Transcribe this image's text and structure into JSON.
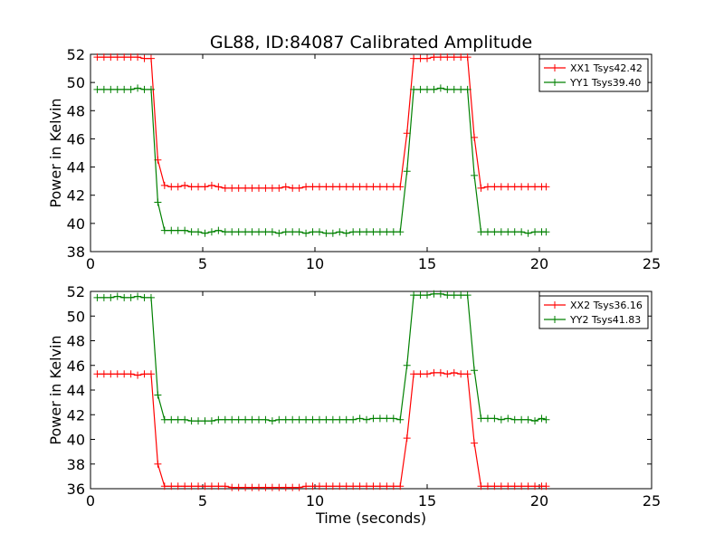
{
  "chart_data": {
    "type": "line",
    "title": "GL88, ID:84087 Calibrated Amplitude",
    "panels": [
      {
        "ylabel": "Power in Kelvin",
        "xlabel": "",
        "xlim": [
          0,
          25
        ],
        "ylim": [
          38,
          52
        ],
        "xticks": [
          "0",
          "5",
          "10",
          "15",
          "20",
          "25"
        ],
        "yticks": [
          "38",
          "40",
          "42",
          "44",
          "46",
          "48",
          "50",
          "52"
        ],
        "legend_position": "top-right",
        "series": [
          {
            "name": "XX1 Tsys42.42",
            "color": "#ff0000",
            "x": [
              0.3,
              0.6,
              0.9,
              1.2,
              1.5,
              1.8,
              2.1,
              2.4,
              2.7,
              3.0,
              3.3,
              3.6,
              3.9,
              4.2,
              4.5,
              4.8,
              5.1,
              5.4,
              5.7,
              6.0,
              6.3,
              6.6,
              6.9,
              7.2,
              7.5,
              7.8,
              8.1,
              8.4,
              8.7,
              9.0,
              9.3,
              9.6,
              9.9,
              10.2,
              10.5,
              10.8,
              11.1,
              11.4,
              11.7,
              12.0,
              12.3,
              12.6,
              12.9,
              13.2,
              13.5,
              13.8,
              14.1,
              14.4,
              14.7,
              15.0,
              15.3,
              15.6,
              15.9,
              16.2,
              16.5,
              16.8,
              17.1,
              17.4,
              17.7,
              18.0,
              18.3,
              18.6,
              18.9,
              19.2,
              19.5,
              19.8,
              20.1,
              20.3
            ],
            "y": [
              51.8,
              51.8,
              51.8,
              51.8,
              51.8,
              51.8,
              51.8,
              51.7,
              51.7,
              44.5,
              42.7,
              42.6,
              42.6,
              42.7,
              42.6,
              42.6,
              42.6,
              42.7,
              42.6,
              42.5,
              42.5,
              42.5,
              42.5,
              42.5,
              42.5,
              42.5,
              42.5,
              42.5,
              42.6,
              42.5,
              42.5,
              42.6,
              42.6,
              42.6,
              42.6,
              42.6,
              42.6,
              42.6,
              42.6,
              42.6,
              42.6,
              42.6,
              42.6,
              42.6,
              42.6,
              42.6,
              46.4,
              51.7,
              51.7,
              51.7,
              51.8,
              51.8,
              51.8,
              51.8,
              51.8,
              51.8,
              46.1,
              42.5,
              42.6,
              42.6,
              42.6,
              42.6,
              42.6,
              42.6,
              42.6,
              42.6,
              42.6,
              42.6
            ]
          },
          {
            "name": "YY1 Tsys39.40",
            "color": "#008000",
            "x": [
              0.3,
              0.6,
              0.9,
              1.2,
              1.5,
              1.8,
              2.1,
              2.4,
              2.7,
              3.0,
              3.3,
              3.6,
              3.9,
              4.2,
              4.5,
              4.8,
              5.1,
              5.4,
              5.7,
              6.0,
              6.3,
              6.6,
              6.9,
              7.2,
              7.5,
              7.8,
              8.1,
              8.4,
              8.7,
              9.0,
              9.3,
              9.6,
              9.9,
              10.2,
              10.5,
              10.8,
              11.1,
              11.4,
              11.7,
              12.0,
              12.3,
              12.6,
              12.9,
              13.2,
              13.5,
              13.8,
              14.1,
              14.4,
              14.7,
              15.0,
              15.3,
              15.6,
              15.9,
              16.2,
              16.5,
              16.8,
              17.1,
              17.4,
              17.7,
              18.0,
              18.3,
              18.6,
              18.9,
              19.2,
              19.5,
              19.8,
              20.1,
              20.3
            ],
            "y": [
              49.5,
              49.5,
              49.5,
              49.5,
              49.5,
              49.5,
              49.6,
              49.5,
              49.5,
              41.5,
              39.5,
              39.5,
              39.5,
              39.5,
              39.4,
              39.4,
              39.3,
              39.4,
              39.5,
              39.4,
              39.4,
              39.4,
              39.4,
              39.4,
              39.4,
              39.4,
              39.4,
              39.3,
              39.4,
              39.4,
              39.4,
              39.3,
              39.4,
              39.4,
              39.3,
              39.3,
              39.4,
              39.3,
              39.4,
              39.4,
              39.4,
              39.4,
              39.4,
              39.4,
              39.4,
              39.4,
              43.7,
              49.5,
              49.5,
              49.5,
              49.5,
              49.6,
              49.5,
              49.5,
              49.5,
              49.5,
              43.4,
              39.4,
              39.4,
              39.4,
              39.4,
              39.4,
              39.4,
              39.4,
              39.3,
              39.4,
              39.4,
              39.4
            ]
          }
        ]
      },
      {
        "ylabel": "Power in Kelvin",
        "xlabel": "Time (seconds)",
        "xlim": [
          0,
          25
        ],
        "ylim": [
          36,
          52
        ],
        "xticks": [
          "0",
          "5",
          "10",
          "15",
          "20",
          "25"
        ],
        "yticks": [
          "36",
          "38",
          "40",
          "42",
          "44",
          "46",
          "48",
          "50",
          "52"
        ],
        "legend_position": "top-right",
        "series": [
          {
            "name": "XX2 Tsys36.16",
            "color": "#ff0000",
            "x": [
              0.3,
              0.6,
              0.9,
              1.2,
              1.5,
              1.8,
              2.1,
              2.4,
              2.7,
              3.0,
              3.3,
              3.6,
              3.9,
              4.2,
              4.5,
              4.8,
              5.1,
              5.4,
              5.7,
              6.0,
              6.3,
              6.6,
              6.9,
              7.2,
              7.5,
              7.8,
              8.1,
              8.4,
              8.7,
              9.0,
              9.3,
              9.6,
              9.9,
              10.2,
              10.5,
              10.8,
              11.1,
              11.4,
              11.7,
              12.0,
              12.3,
              12.6,
              12.9,
              13.2,
              13.5,
              13.8,
              14.1,
              14.4,
              14.7,
              15.0,
              15.3,
              15.6,
              15.9,
              16.2,
              16.5,
              16.8,
              17.1,
              17.4,
              17.7,
              18.0,
              18.3,
              18.6,
              18.9,
              19.2,
              19.5,
              19.8,
              20.1,
              20.3
            ],
            "y": [
              45.3,
              45.3,
              45.3,
              45.3,
              45.3,
              45.3,
              45.2,
              45.3,
              45.3,
              38.0,
              36.2,
              36.2,
              36.2,
              36.2,
              36.2,
              36.2,
              36.2,
              36.2,
              36.2,
              36.2,
              36.1,
              36.1,
              36.1,
              36.1,
              36.1,
              36.1,
              36.1,
              36.1,
              36.1,
              36.1,
              36.1,
              36.2,
              36.2,
              36.2,
              36.2,
              36.2,
              36.2,
              36.2,
              36.2,
              36.2,
              36.2,
              36.2,
              36.2,
              36.2,
              36.2,
              36.2,
              40.1,
              45.3,
              45.3,
              45.3,
              45.4,
              45.4,
              45.3,
              45.4,
              45.3,
              45.3,
              39.7,
              36.2,
              36.2,
              36.2,
              36.2,
              36.2,
              36.2,
              36.2,
              36.2,
              36.2,
              36.2,
              36.2
            ]
          },
          {
            "name": "YY2 Tsys41.83",
            "color": "#008000",
            "x": [
              0.3,
              0.6,
              0.9,
              1.2,
              1.5,
              1.8,
              2.1,
              2.4,
              2.7,
              3.0,
              3.3,
              3.6,
              3.9,
              4.2,
              4.5,
              4.8,
              5.1,
              5.4,
              5.7,
              6.0,
              6.3,
              6.6,
              6.9,
              7.2,
              7.5,
              7.8,
              8.1,
              8.4,
              8.7,
              9.0,
              9.3,
              9.6,
              9.9,
              10.2,
              10.5,
              10.8,
              11.1,
              11.4,
              11.7,
              12.0,
              12.3,
              12.6,
              12.9,
              13.2,
              13.5,
              13.8,
              14.1,
              14.4,
              14.7,
              15.0,
              15.3,
              15.6,
              15.9,
              16.2,
              16.5,
              16.8,
              17.1,
              17.4,
              17.7,
              18.0,
              18.3,
              18.6,
              18.9,
              19.2,
              19.5,
              19.8,
              20.1,
              20.3
            ],
            "y": [
              51.5,
              51.5,
              51.5,
              51.6,
              51.5,
              51.5,
              51.6,
              51.5,
              51.5,
              43.6,
              41.6,
              41.6,
              41.6,
              41.6,
              41.5,
              41.5,
              41.5,
              41.5,
              41.6,
              41.6,
              41.6,
              41.6,
              41.6,
              41.6,
              41.6,
              41.6,
              41.5,
              41.6,
              41.6,
              41.6,
              41.6,
              41.6,
              41.6,
              41.6,
              41.6,
              41.6,
              41.6,
              41.6,
              41.6,
              41.7,
              41.6,
              41.7,
              41.7,
              41.7,
              41.7,
              41.6,
              46.0,
              51.7,
              51.7,
              51.7,
              51.8,
              51.8,
              51.7,
              51.7,
              51.7,
              51.7,
              45.6,
              41.7,
              41.7,
              41.7,
              41.6,
              41.7,
              41.6,
              41.6,
              41.6,
              41.5,
              41.7,
              41.6
            ]
          }
        ]
      }
    ]
  }
}
